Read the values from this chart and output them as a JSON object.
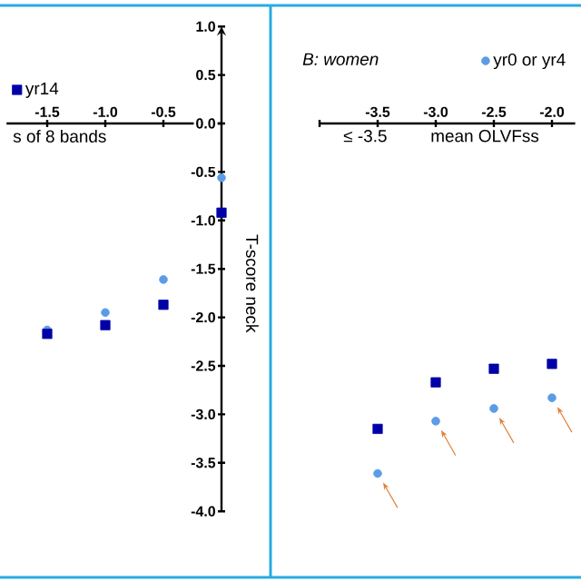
{
  "chart_data": [
    {
      "type": "scatter",
      "xlabel": "s of 8 bands",
      "ylabel": "T-score neck",
      "x": [
        -1.5,
        -1.0,
        -0.5,
        0.0
      ],
      "series": [
        {
          "color": "#5b9ce6",
          "marker": "circle",
          "values": [
            -2.13,
            -1.95,
            -1.61,
            -0.56
          ]
        },
        {
          "name": "yr14",
          "color": "#0000a8",
          "marker": "square",
          "values": [
            -2.17,
            -2.08,
            -1.87,
            -0.92
          ]
        }
      ],
      "xlim": [
        -1.85,
        0.0
      ],
      "ylim": [
        -4.0,
        1.0
      ],
      "xticks": [
        -1.5,
        {
          "value": -1.0,
          "label": "-1.0"
        },
        -0.5
      ],
      "yticks": [
        {
          "value": -4.0,
          "label": "-4.0"
        },
        -3.5,
        {
          "value": -3.0,
          "label": "-3.0"
        },
        -2.5,
        {
          "value": -2.0,
          "label": "-2.0"
        },
        -1.5,
        {
          "value": -1.0,
          "label": "-1.0"
        },
        -0.5,
        {
          "value": 0.0,
          "label": "0.0"
        },
        0.5,
        {
          "value": 1.0,
          "label": "1.0"
        }
      ],
      "legend": "top left"
    },
    {
      "type": "scatter",
      "title": "B: women",
      "xlabel": "mean OLVFss",
      "x": [
        -3.5,
        -3.0,
        -2.5,
        -2.0
      ],
      "series": [
        {
          "name": "yr0 or yr4",
          "color": "#5b9ce6",
          "marker": "circle",
          "values": [
            -3.61,
            -3.07,
            -2.94,
            -2.83
          ]
        },
        {
          "color": "#0000a8",
          "marker": "square",
          "values": [
            -3.15,
            -2.67,
            -2.53,
            -2.48
          ]
        }
      ],
      "xlim": [
        -4.0,
        -1.8
      ],
      "ylim": [
        -4.0,
        1.0
      ],
      "xticks": [
        {
          "value": -4.0,
          "label": null
        },
        -3.5,
        {
          "value": -3.0,
          "label": "-3.0"
        },
        -2.5,
        {
          "value": -2.0,
          "label": "-2.0"
        }
      ],
      "tick_labels": "x",
      "legend": "top right",
      "annotations": [
        "≤ -3.5"
      ]
    }
  ]
}
